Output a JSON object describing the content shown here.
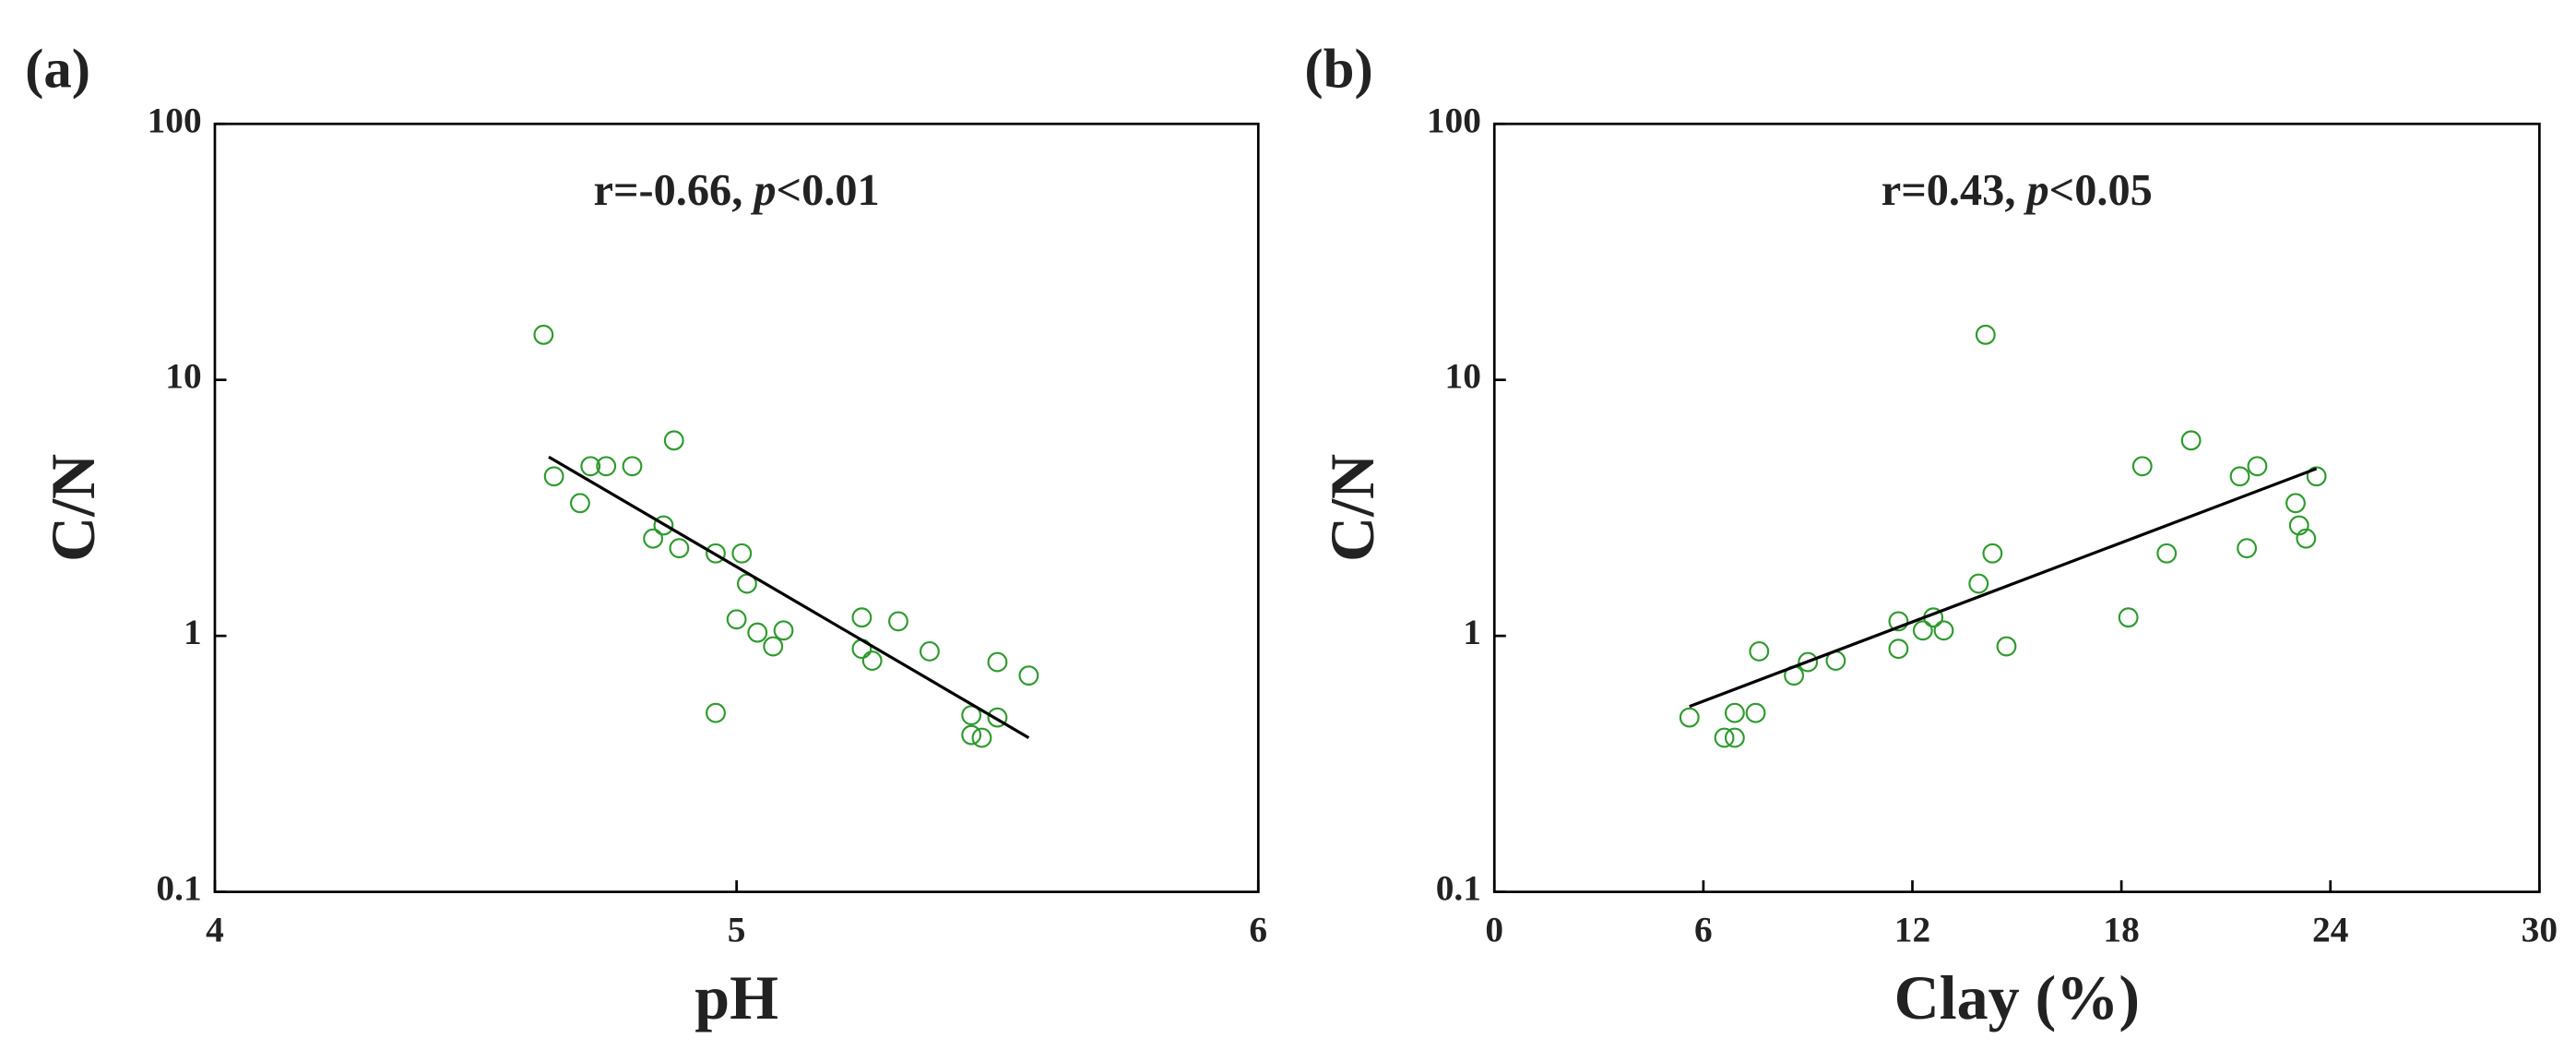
{
  "chart_data": [
    {
      "type": "scatter",
      "panel_label": "(a)",
      "xlabel": "pH",
      "ylabel": "C/N",
      "annotation": {
        "r": "r=-0.66, ",
        "p": "p",
        "rest": "<0.01"
      },
      "log_y": true,
      "color": "#2e9a2e",
      "line_color": "#000000",
      "xlim": [
        4,
        6
      ],
      "xticks": [
        4,
        5,
        6
      ],
      "ylim": [
        0.1,
        100
      ],
      "yticks": [
        0.1,
        1,
        10,
        100
      ],
      "x": [
        4.63,
        4.65,
        4.7,
        4.72,
        4.75,
        4.8,
        4.88,
        4.84,
        4.86,
        4.89,
        4.96,
        5.01,
        5.02,
        5.0,
        5.04,
        5.07,
        5.09,
        4.96,
        5.24,
        5.24,
        5.26,
        5.31,
        5.37,
        5.45,
        5.45,
        5.47,
        5.5,
        5.5,
        5.56
      ],
      "values": [
        15,
        4.2,
        3.3,
        4.6,
        4.6,
        4.6,
        5.8,
        2.4,
        2.7,
        2.2,
        2.1,
        2.1,
        1.6,
        1.16,
        1.03,
        0.91,
        1.05,
        0.5,
        1.18,
        0.89,
        0.8,
        1.14,
        0.87,
        0.49,
        0.41,
        0.4,
        0.79,
        0.48,
        0.7
      ],
      "fit": {
        "x": [
          4.64,
          5.56
        ],
        "values": [
          5.0,
          0.4
        ]
      }
    },
    {
      "type": "scatter",
      "panel_label": "(b)",
      "xlabel": "Clay (%)",
      "ylabel": "C/N",
      "annotation": {
        "r": "r=0.43, ",
        "p": "p",
        "rest": "<0.05"
      },
      "log_y": true,
      "color": "#2e9a2e",
      "line_color": "#000000",
      "xlim": [
        0,
        30
      ],
      "xticks": [
        0,
        6,
        12,
        18,
        24,
        30
      ],
      "ylim": [
        0.1,
        100
      ],
      "yticks": [
        0.1,
        1,
        10,
        100
      ],
      "x": [
        5.6,
        6.6,
        6.9,
        6.9,
        7.5,
        7.6,
        8.6,
        9.0,
        9.8,
        11.6,
        11.6,
        12.3,
        12.6,
        12.9,
        13.9,
        14.3,
        14.1,
        14.7,
        18.2,
        18.6,
        19.3,
        20.0,
        21.4,
        21.6,
        21.9,
        23.0,
        23.1,
        23.3,
        23.6
      ],
      "values": [
        0.48,
        0.4,
        0.4,
        0.5,
        0.5,
        0.87,
        0.7,
        0.79,
        0.8,
        1.14,
        0.89,
        1.05,
        1.18,
        1.05,
        1.6,
        2.1,
        15,
        0.91,
        1.18,
        4.6,
        2.1,
        5.8,
        4.2,
        2.2,
        4.6,
        3.3,
        2.7,
        2.4,
        4.2
      ],
      "fit": {
        "x": [
          5.6,
          23.6
        ],
        "values": [
          0.53,
          4.5
        ]
      }
    }
  ]
}
